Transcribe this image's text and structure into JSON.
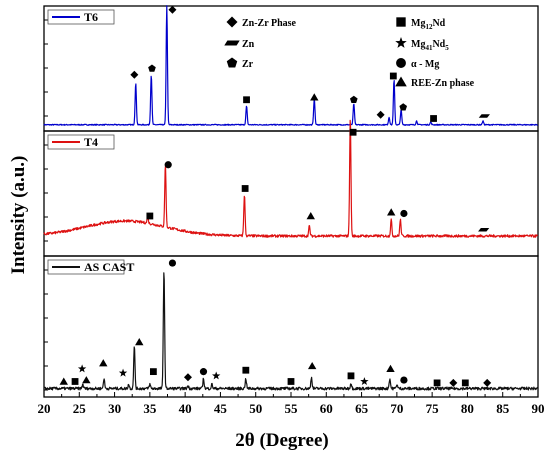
{
  "chart_data": {
    "type": "line",
    "xlabel": "2θ (Degree)",
    "ylabel": "Intensity (a.u.)",
    "xlim": [
      20,
      90
    ],
    "x_ticks": [
      "20",
      "25",
      "30",
      "35",
      "40",
      "45",
      "50",
      "55",
      "60",
      "65",
      "70",
      "75",
      "80",
      "85",
      "90"
    ],
    "stacked_panels": true,
    "grid": false,
    "phase_key": [
      {
        "marker": "diamond",
        "label": "Zn-Zr Phase"
      },
      {
        "marker": "dash",
        "label": "Zn"
      },
      {
        "marker": "pentagon",
        "label": "Zr"
      },
      {
        "marker": "square",
        "label_main": "Mg",
        "label_sub": "12",
        "label_tail": "Nd"
      },
      {
        "marker": "star",
        "label_main": "Mg",
        "label_sub": "41",
        "label_tail": "Nd",
        "label_sub2": "5"
      },
      {
        "marker": "circle",
        "label": "α - Mg"
      },
      {
        "marker": "triangle",
        "label": "REE-Zn phase"
      }
    ],
    "series": [
      {
        "name": "T6",
        "color": "#0000cc",
        "baseline": 0.05,
        "noise": 0.004,
        "hump": null,
        "peaks": [
          {
            "x": 33.0,
            "h": 0.33
          },
          {
            "x": 35.2,
            "h": 0.4
          },
          {
            "x": 37.4,
            "h": 0.95
          },
          {
            "x": 48.7,
            "h": 0.15
          },
          {
            "x": 58.3,
            "h": 0.21
          },
          {
            "x": 63.9,
            "h": 0.17
          },
          {
            "x": 68.9,
            "h": 0.06
          },
          {
            "x": 69.6,
            "h": 0.36
          },
          {
            "x": 70.6,
            "h": 0.12
          },
          {
            "x": 72.8,
            "h": 0.03
          },
          {
            "x": 74.8,
            "h": 0.02
          },
          {
            "x": 82.2,
            "h": 0.03
          }
        ],
        "markers": [
          {
            "x": 32.8,
            "y": 0.45,
            "type": "diamond"
          },
          {
            "x": 35.3,
            "y": 0.5,
            "type": "pentagon"
          },
          {
            "x": 38.2,
            "y": 0.97,
            "type": "diamond"
          },
          {
            "x": 48.7,
            "y": 0.25,
            "type": "square"
          },
          {
            "x": 58.3,
            "y": 0.27,
            "type": "triangle"
          },
          {
            "x": 63.9,
            "y": 0.25,
            "type": "pentagon"
          },
          {
            "x": 67.7,
            "y": 0.13,
            "type": "diamond"
          },
          {
            "x": 69.5,
            "y": 0.44,
            "type": "square"
          },
          {
            "x": 70.9,
            "y": 0.19,
            "type": "pentagon"
          },
          {
            "x": 75.2,
            "y": 0.1,
            "type": "square"
          },
          {
            "x": 82.4,
            "y": 0.12,
            "type": "dash"
          }
        ]
      },
      {
        "name": "T4",
        "color": "#dd1111",
        "baseline": 0.16,
        "noise": 0.01,
        "hump": {
          "center": 31.5,
          "width": 8.0,
          "height": 0.12
        },
        "peaks": [
          {
            "x": 34.7,
            "h": 0.05
          },
          {
            "x": 37.2,
            "h": 0.5
          },
          {
            "x": 48.4,
            "h": 0.33
          },
          {
            "x": 57.6,
            "h": 0.08
          },
          {
            "x": 63.4,
            "h": 0.95
          },
          {
            "x": 69.2,
            "h": 0.13
          },
          {
            "x": 70.5,
            "h": 0.13
          }
        ],
        "markers": [
          {
            "x": 35.0,
            "y": 0.32,
            "type": "square"
          },
          {
            "x": 37.6,
            "y": 0.73,
            "type": "circle"
          },
          {
            "x": 48.5,
            "y": 0.54,
            "type": "square"
          },
          {
            "x": 57.8,
            "y": 0.32,
            "type": "triangle"
          },
          {
            "x": 63.8,
            "y": 0.99,
            "type": "square"
          },
          {
            "x": 69.2,
            "y": 0.35,
            "type": "triangle"
          },
          {
            "x": 71.0,
            "y": 0.34,
            "type": "circle"
          },
          {
            "x": 82.3,
            "y": 0.21,
            "type": "dash"
          }
        ]
      },
      {
        "name": "AS CAST",
        "color": "#111111",
        "baseline": 0.06,
        "noise": 0.01,
        "hump": null,
        "peaks": [
          {
            "x": 25.5,
            "h": 0.03
          },
          {
            "x": 28.5,
            "h": 0.07
          },
          {
            "x": 32.0,
            "h": 0.03
          },
          {
            "x": 32.8,
            "h": 0.3
          },
          {
            "x": 35.0,
            "h": 0.03
          },
          {
            "x": 37.0,
            "h": 0.85
          },
          {
            "x": 40.4,
            "h": 0.02
          },
          {
            "x": 42.6,
            "h": 0.07
          },
          {
            "x": 43.8,
            "h": 0.03
          },
          {
            "x": 48.6,
            "h": 0.07
          },
          {
            "x": 57.9,
            "h": 0.08
          },
          {
            "x": 63.5,
            "h": 0.04
          },
          {
            "x": 69.0,
            "h": 0.07
          },
          {
            "x": 70.0,
            "h": 0.03
          }
        ],
        "markers": [
          {
            "x": 22.8,
            "y": 0.11,
            "type": "triangle"
          },
          {
            "x": 24.4,
            "y": 0.11,
            "type": "square"
          },
          {
            "x": 25.4,
            "y": 0.2,
            "type": "star"
          },
          {
            "x": 26.0,
            "y": 0.12,
            "type": "triangle"
          },
          {
            "x": 28.4,
            "y": 0.24,
            "type": "triangle"
          },
          {
            "x": 31.2,
            "y": 0.17,
            "type": "star"
          },
          {
            "x": 33.5,
            "y": 0.39,
            "type": "triangle"
          },
          {
            "x": 35.5,
            "y": 0.18,
            "type": "square"
          },
          {
            "x": 38.2,
            "y": 0.95,
            "type": "circle"
          },
          {
            "x": 40.4,
            "y": 0.14,
            "type": "diamond"
          },
          {
            "x": 42.6,
            "y": 0.18,
            "type": "circle"
          },
          {
            "x": 44.4,
            "y": 0.15,
            "type": "star"
          },
          {
            "x": 48.6,
            "y": 0.19,
            "type": "square"
          },
          {
            "x": 55.0,
            "y": 0.11,
            "type": "square"
          },
          {
            "x": 58.0,
            "y": 0.22,
            "type": "triangle"
          },
          {
            "x": 63.5,
            "y": 0.15,
            "type": "square"
          },
          {
            "x": 65.4,
            "y": 0.11,
            "type": "star"
          },
          {
            "x": 69.1,
            "y": 0.2,
            "type": "triangle"
          },
          {
            "x": 71.0,
            "y": 0.12,
            "type": "circle"
          },
          {
            "x": 75.7,
            "y": 0.1,
            "type": "square"
          },
          {
            "x": 78.0,
            "y": 0.1,
            "type": "diamond"
          },
          {
            "x": 79.7,
            "y": 0.1,
            "type": "square"
          },
          {
            "x": 82.8,
            "y": 0.1,
            "type": "diamond"
          }
        ]
      }
    ]
  }
}
